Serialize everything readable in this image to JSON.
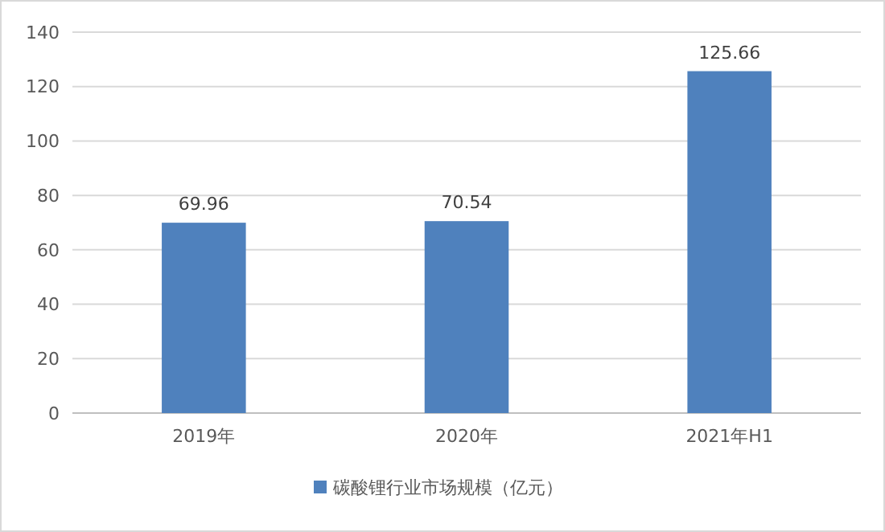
{
  "chart_data": {
    "type": "bar",
    "categories": [
      "2019年",
      "2020年",
      "2021年H1"
    ],
    "series": [
      {
        "name": "碳酸锂行业市场规模（亿元）",
        "color": "#4f81bd",
        "values": [
          69.96,
          70.54,
          125.66
        ]
      }
    ],
    "ylim": [
      0,
      140
    ],
    "yticks": [
      0,
      20,
      40,
      60,
      80,
      100,
      120,
      140
    ],
    "grid": "y",
    "data_labels": true,
    "legend": "bottom"
  }
}
